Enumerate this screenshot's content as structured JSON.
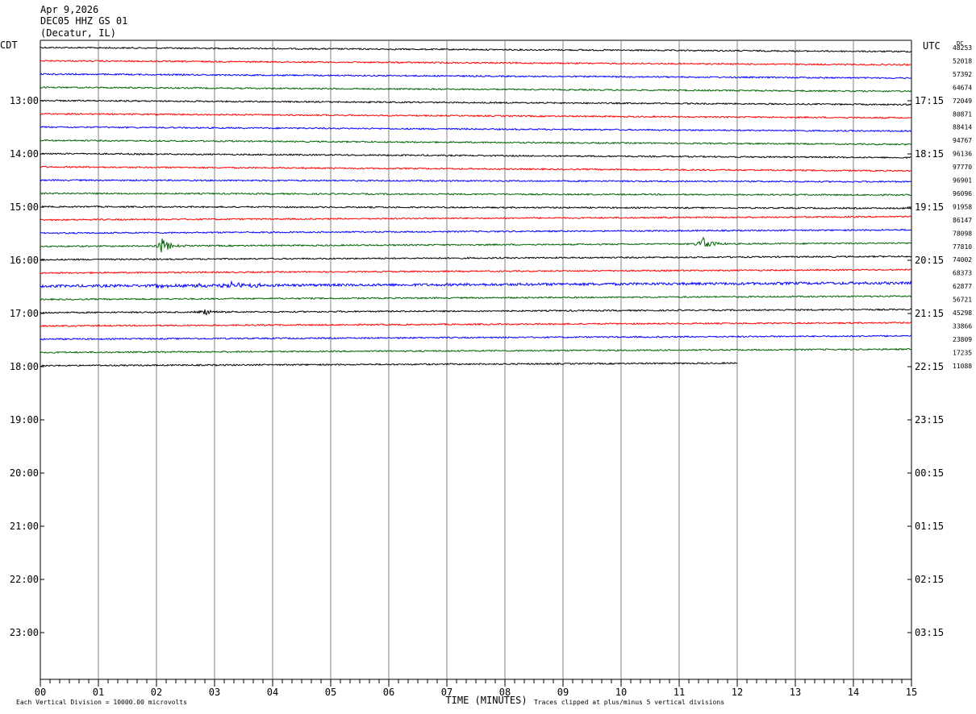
{
  "header": {
    "date": "Apr 9,2026",
    "station": "DEC05 HHZ GS 01",
    "location": "(Decatur, IL)"
  },
  "left_timezone": "CDT",
  "right_timezone": "UTC",
  "dc_label": "DC",
  "footer": {
    "scale_note": "Each Vertical Division = 10000.00 microvolts",
    "clip_note": "Traces clipped at plus/minus 5 vertical divisions"
  },
  "colors": {
    "traces": [
      "#000000",
      "#ff0000",
      "#0000ff",
      "#006400"
    ],
    "grid": "#808080"
  },
  "chart_data": {
    "type": "line",
    "xlabel": "TIME (MINUTES)",
    "xlim": [
      0,
      15
    ],
    "x_ticks": [
      "00",
      "01",
      "02",
      "03",
      "04",
      "05",
      "06",
      "07",
      "08",
      "09",
      "10",
      "11",
      "12",
      "13",
      "14",
      "15"
    ],
    "left_hour_labels": [
      "13:00",
      "14:00",
      "15:00",
      "16:00",
      "17:00",
      "18:00",
      "19:00",
      "20:00",
      "21:00",
      "22:00",
      "23:00"
    ],
    "right_hour_labels": [
      "17:15",
      "18:15",
      "19:15",
      "20:15",
      "21:15",
      "22:15",
      "23:15",
      "00:15",
      "01:15",
      "02:15",
      "03:15"
    ],
    "trace_count": 25,
    "dc_offsets": [
      "48253",
      "52018",
      "57392",
      "64674",
      "72049",
      "80871",
      "88414",
      "94767",
      "96136",
      "97770",
      "96901",
      "96096",
      "91958",
      "86147",
      "78098",
      "77810",
      "74002",
      "68373",
      "62877",
      "56721",
      "45298",
      "33866",
      "23809",
      "17235",
      "11088"
    ],
    "events": [
      {
        "trace": 15,
        "minute": 2.1,
        "amplitude": "large"
      },
      {
        "trace": 15,
        "minute": 11.4,
        "amplitude": "large"
      },
      {
        "trace": 18,
        "minute": 3.3,
        "amplitude": "medium"
      },
      {
        "trace": 20,
        "minute": 2.8,
        "amplitude": "small"
      }
    ],
    "last_trace_end_minute": 12.0
  }
}
